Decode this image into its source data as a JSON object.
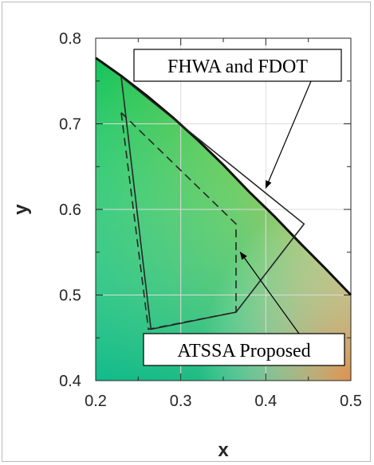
{
  "chart_data": {
    "type": "line",
    "xlabel": "x",
    "ylabel": "y",
    "xlim": [
      0.2,
      0.5
    ],
    "ylim": [
      0.4,
      0.8
    ],
    "xticks": [
      0.2,
      0.3,
      0.4,
      0.5
    ],
    "yticks": [
      0.4,
      0.5,
      0.6,
      0.7,
      0.8
    ],
    "xtick_labels": [
      "0.2",
      "0.3",
      "0.4",
      "0.5"
    ],
    "ytick_labels": [
      "0.4",
      "0.5",
      "0.6",
      "0.7",
      "0.8"
    ],
    "grid": true,
    "spectral_locus": {
      "x": [
        0.2,
        0.23,
        0.26,
        0.29,
        0.32,
        0.35,
        0.38,
        0.41,
        0.44,
        0.47,
        0.5
      ],
      "y": [
        0.777,
        0.756,
        0.733,
        0.708,
        0.681,
        0.652,
        0.621,
        0.592,
        0.561,
        0.531,
        0.5
      ]
    },
    "series": [
      {
        "x": [
          0.23,
          0.265,
          0.365,
          0.445,
          0.23
        ],
        "y": [
          0.755,
          0.46,
          0.48,
          0.583,
          0.755
        ]
      },
      {
        "x": [
          0.23,
          0.262,
          0.365,
          0.365,
          0.23
        ],
        "y": [
          0.713,
          0.46,
          0.48,
          0.583,
          0.713
        ]
      }
    ],
    "annotations": [
      {
        "text": "FHWA and FDOT",
        "point_x": 0.4,
        "point_y": 0.625
      },
      {
        "text": "ATSSA Proposed",
        "point_x": 0.37,
        "point_y": 0.55
      }
    ],
    "colors": {
      "gamut_top_left": "#35d01e",
      "gamut_left": "#12c45a",
      "gamut_bottom_left": "#10b89a",
      "gamut_mid": "#5cc63a",
      "gamut_right": "#e6a821",
      "gamut_bottom_right": "#f08d4a",
      "outline": "#262626"
    }
  }
}
